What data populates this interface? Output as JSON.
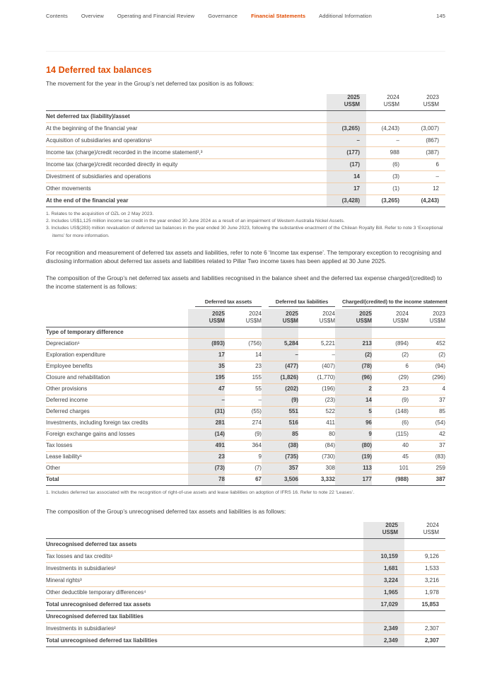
{
  "colors": {
    "accent": "#e04b00",
    "column_shade": "#e7e7e7",
    "row_line": "#f1cda9",
    "strong_line": "#55565a"
  },
  "nav": {
    "items": [
      {
        "label": "Contents",
        "active": false
      },
      {
        "label": "Overview",
        "active": false
      },
      {
        "label": "Operating and Financial Review",
        "active": false
      },
      {
        "label": "Governance",
        "active": false
      },
      {
        "label": "Financial Statements",
        "active": true
      },
      {
        "label": "Additional Information",
        "active": false
      }
    ],
    "page_number": "145"
  },
  "heading": "14 Deferred tax balances",
  "intro": "The movement for the year in the Group’s net deferred tax position is as follows:",
  "table1": {
    "col_headers": [
      {
        "year": "2025",
        "unit": "US$M"
      },
      {
        "year": "2024",
        "unit": "US$M"
      },
      {
        "year": "2023",
        "unit": "US$M"
      }
    ],
    "rows": [
      {
        "type": "section",
        "label": "Net deferred tax (liability)/asset"
      },
      {
        "type": "data",
        "label": "At the beginning of the financial year",
        "values": [
          "(3,265)",
          "(4,243)",
          "(3,007)"
        ]
      },
      {
        "type": "data",
        "label": "Acquisition of subsidiaries and operations¹",
        "values": [
          "–",
          "–",
          "(867)"
        ]
      },
      {
        "type": "data",
        "label": "Income tax (charge)/credit recorded in the income statement²,³",
        "values": [
          "(177)",
          "988",
          "(387)"
        ]
      },
      {
        "type": "data",
        "label": "Income tax (charge)/credit recorded directly in equity",
        "values": [
          "(17)",
          "(6)",
          "6"
        ]
      },
      {
        "type": "data",
        "label": "Divestment of subsidiaries and operations",
        "values": [
          "14",
          "(3)",
          "–"
        ]
      },
      {
        "type": "data",
        "label": "Other movements",
        "values": [
          "17",
          "(1)",
          "12"
        ]
      },
      {
        "type": "total",
        "label": "At the end of the financial year",
        "values": [
          "(3,428)",
          "(3,265)",
          "(4,243)"
        ]
      }
    ],
    "footnotes": [
      "1. Relates to the acquisition of OZL on 2 May 2023.",
      "2. Includes US$1,125 million income tax credit in the year ended 30 June 2024 as a result of an impairment of Western Australia Nickel Assets.",
      "3. Includes US$(283) million revaluation of deferred tax balances in the year ended 30 June 2023, following the substantive enactment of the Chilean Royalty Bill. Refer to note 3 ‘Exceptional items’ for more information."
    ]
  },
  "para1": "For recognition and measurement of deferred tax assets and liabilities, refer to note 6 ‘Income tax expense’. The temporary exception to recognising and disclosing information about deferred tax assets and liabilities related to Pillar Two income taxes has been applied at 30 June 2025.",
  "para2": "The composition of the Group’s net deferred tax assets and liabilities recognised in the balance sheet and the deferred tax expense charged/(credited) to the income statement is as follows:",
  "table2": {
    "groups": [
      "Deferred tax assets",
      "Deferred tax liabilities",
      "Charged/(credited) to the income statement"
    ],
    "col_headers": [
      {
        "year": "2025",
        "unit": "US$M"
      },
      {
        "year": "2024",
        "unit": "US$M"
      },
      {
        "year": "2025",
        "unit": "US$M"
      },
      {
        "year": "2024",
        "unit": "US$M"
      },
      {
        "year": "2025",
        "unit": "US$M"
      },
      {
        "year": "2024",
        "unit": "US$M"
      },
      {
        "year": "2023",
        "unit": "US$M"
      }
    ],
    "rows": [
      {
        "type": "section",
        "label": "Type of temporary difference"
      },
      {
        "type": "data",
        "label": "Depreciation¹",
        "values": [
          "(893)",
          "(756)",
          "5,284",
          "5,221",
          "213",
          "(894)",
          "452"
        ]
      },
      {
        "type": "data",
        "label": "Exploration expenditure",
        "values": [
          "17",
          "14",
          "–",
          "–",
          "(2)",
          "(2)",
          "(2)"
        ]
      },
      {
        "type": "data",
        "label": "Employee benefits",
        "values": [
          "35",
          "23",
          "(477)",
          "(407)",
          "(78)",
          "6",
          "(94)"
        ]
      },
      {
        "type": "data",
        "label": "Closure and rehabilitation",
        "values": [
          "195",
          "155",
          "(1,826)",
          "(1,770)",
          "(96)",
          "(29)",
          "(296)"
        ]
      },
      {
        "type": "data",
        "label": "Other provisions",
        "values": [
          "47",
          "55",
          "(202)",
          "(196)",
          "2",
          "23",
          "4"
        ]
      },
      {
        "type": "data",
        "label": "Deferred income",
        "values": [
          "–",
          "–",
          "(9)",
          "(23)",
          "14",
          "(9)",
          "37"
        ]
      },
      {
        "type": "data",
        "label": "Deferred charges",
        "values": [
          "(31)",
          "(55)",
          "551",
          "522",
          "5",
          "(148)",
          "85"
        ]
      },
      {
        "type": "data",
        "label": "Investments, including foreign tax credits",
        "values": [
          "281",
          "274",
          "516",
          "411",
          "96",
          "(6)",
          "(54)"
        ]
      },
      {
        "type": "data",
        "label": "Foreign exchange gains and losses",
        "values": [
          "(14)",
          "(9)",
          "85",
          "80",
          "9",
          "(115)",
          "42"
        ]
      },
      {
        "type": "data",
        "label": "Tax losses",
        "values": [
          "491",
          "364",
          "(38)",
          "(84)",
          "(80)",
          "40",
          "37"
        ]
      },
      {
        "type": "data",
        "label": "Lease liability¹",
        "values": [
          "23",
          "9",
          "(735)",
          "(730)",
          "(19)",
          "45",
          "(83)"
        ]
      },
      {
        "type": "data",
        "label": "Other",
        "values": [
          "(73)",
          "(7)",
          "357",
          "308",
          "113",
          "101",
          "259"
        ]
      },
      {
        "type": "total",
        "label": "Total",
        "values": [
          "78",
          "67",
          "3,506",
          "3,332",
          "177",
          "(988)",
          "387"
        ]
      }
    ],
    "footnotes": [
      "1. Includes deferred tax associated with the recognition of right-of-use assets and lease liabilities on adoption of IFRS 16. Refer to note 22 ‘Leases’."
    ]
  },
  "para3": "The composition of the Group’s unrecognised deferred tax assets and liabilities is as follows:",
  "table3": {
    "col_headers": [
      {
        "year": "2025",
        "unit": "US$M"
      },
      {
        "year": "2024",
        "unit": "US$M"
      }
    ],
    "rows": [
      {
        "type": "section",
        "label": "Unrecognised deferred tax assets"
      },
      {
        "type": "data",
        "label": "Tax losses and tax credits¹",
        "values": [
          "10,159",
          "9,126"
        ]
      },
      {
        "type": "data",
        "label": "Investments in subsidiaries²",
        "values": [
          "1,681",
          "1,533"
        ]
      },
      {
        "type": "data",
        "label": "Mineral rights³",
        "values": [
          "3,224",
          "3,216"
        ]
      },
      {
        "type": "data",
        "label": "Other deductible temporary differences⁴",
        "values": [
          "1,965",
          "1,978"
        ]
      },
      {
        "type": "total",
        "label": "Total unrecognised deferred tax assets",
        "values": [
          "17,029",
          "15,853"
        ]
      },
      {
        "type": "section",
        "label": "Unrecognised deferred tax liabilities"
      },
      {
        "type": "data",
        "label": "Investments in subsidiaries²",
        "values": [
          "2,349",
          "2,307"
        ]
      },
      {
        "type": "total",
        "label": "Total unrecognised deferred tax liabilities",
        "values": [
          "2,349",
          "2,307"
        ]
      }
    ]
  }
}
